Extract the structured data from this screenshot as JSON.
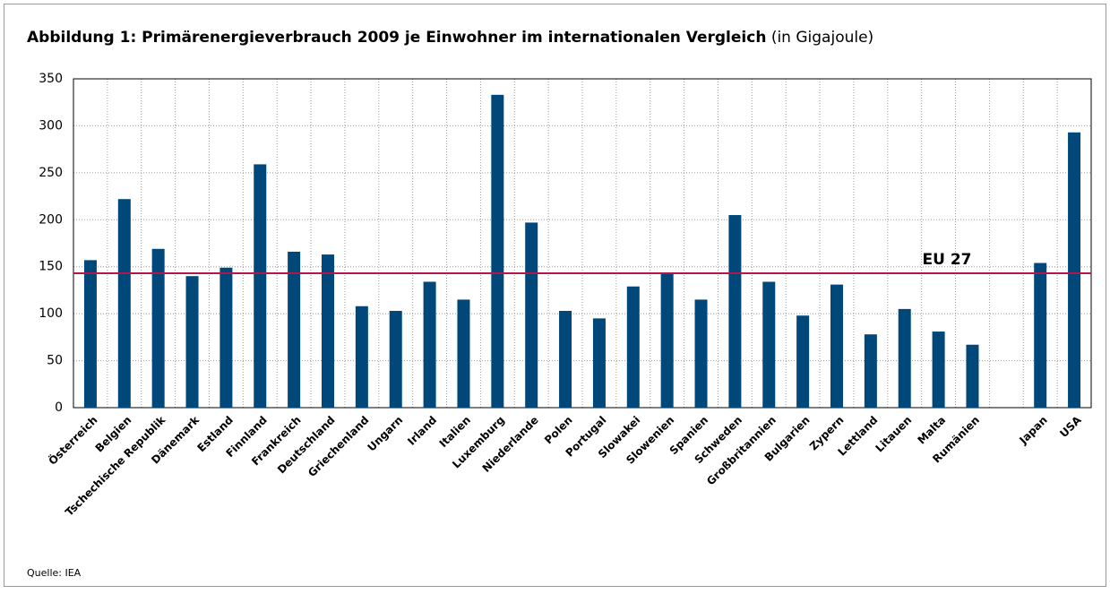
{
  "chart_data": {
    "type": "bar",
    "title": "Abbildung 1: Primärenergieverbrauch 2009 je Einwohner im internationalen Vergleich",
    "unit_label": "(in Gigajoule)",
    "source": "Quelle: IEA",
    "categories": [
      "Österreich",
      "Belgien",
      "Tschechische Republik",
      "Dänemark",
      "Estland",
      "Finnland",
      "Frankreich",
      "Deutschland",
      "Griechenland",
      "Ungarn",
      "Irland",
      "Italien",
      "Luxemburg",
      "Niederlande",
      "Polen",
      "Portugal",
      "Slowakei",
      "Slowenien",
      "Spanien",
      "Schweden",
      "Großbritannien",
      "Bulgarien",
      "Zypern",
      "Lettland",
      "Litauen",
      "Malta",
      "Rumänien",
      null,
      "Japan",
      "USA"
    ],
    "values": [
      157,
      222,
      169,
      140,
      149,
      259,
      166,
      163,
      108,
      103,
      134,
      115,
      333,
      197,
      103,
      95,
      129,
      144,
      115,
      205,
      134,
      98,
      131,
      78,
      105,
      81,
      67,
      null,
      154,
      293
    ],
    "color": "#00477a",
    "ylim": [
      0,
      350
    ],
    "yticks": [
      0,
      50,
      100,
      150,
      200,
      250,
      300,
      350
    ],
    "grid": true,
    "reference": {
      "label": "EU 27",
      "value": 143,
      "color": "#b3164b"
    }
  }
}
